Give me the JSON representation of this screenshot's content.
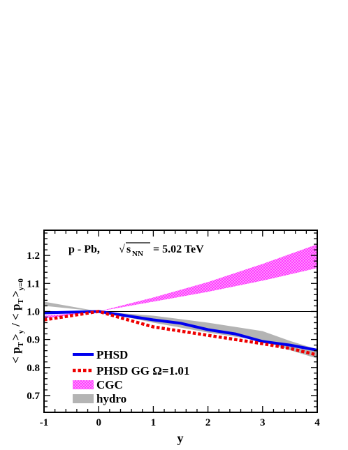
{
  "chart_data": {
    "type": "line",
    "xlabel": "y",
    "xlim": [
      -1,
      4
    ],
    "ylim": [
      0.64,
      1.29
    ],
    "xticks": [
      -1,
      0,
      1,
      2,
      3,
      4
    ],
    "xtick_labels": [
      "-1",
      "0",
      "1",
      "2",
      "3",
      "4"
    ],
    "yticks": [
      0.7,
      0.8,
      0.9,
      1.0,
      1.1,
      1.2
    ],
    "ytick_labels": [
      "0.7",
      "0.8",
      "0.9",
      "1.0",
      "1.1",
      "1.2"
    ],
    "reference_line": 1.0,
    "annotation": {
      "system": "p - Pb,",
      "sqrt_symbol": "√",
      "s_label": "s",
      "s_subscript": "NN",
      "energy": "= 5.02 TeV"
    },
    "ylabel_parts": {
      "open1": "< p",
      "sub1": "T",
      "close1": ">",
      "sub_y": "y",
      "slash": "/ < p",
      "sub2": "T",
      "close2": ">",
      "sub_y0": "y=0"
    },
    "legend": {
      "position": "bottom-left",
      "entries": [
        {
          "label": "PHSD",
          "style": "solid-line",
          "color": "#0000ee"
        },
        {
          "label": "PHSD GG Ω=1.01",
          "style": "dotted-line",
          "color": "#ee0000"
        },
        {
          "label": "CGC",
          "style": "band",
          "color": "#ff33ff"
        },
        {
          "label": "hydro",
          "style": "band",
          "color": "#b4b4b4"
        }
      ]
    },
    "series": [
      {
        "name": "PHSD",
        "style": "solid-line",
        "color": "#0000ee",
        "x": [
          -1,
          0,
          0.5,
          1,
          1.5,
          2,
          2.5,
          3,
          3.5,
          4
        ],
        "y": [
          0.995,
          1.0,
          0.985,
          0.97,
          0.958,
          0.935,
          0.92,
          0.893,
          0.88,
          0.862
        ]
      },
      {
        "name": "PHSD GG Ω=1.01",
        "style": "dotted-line",
        "color": "#ee0000",
        "x": [
          -1,
          0,
          0.5,
          1,
          1.5,
          2,
          2.5,
          3,
          3.5,
          4
        ],
        "y": [
          0.97,
          1.0,
          0.972,
          0.945,
          0.93,
          0.915,
          0.9,
          0.885,
          0.868,
          0.845
        ]
      },
      {
        "name": "CGC",
        "style": "band",
        "color": "#ff33ff",
        "x": [
          -1,
          0,
          1,
          2,
          3,
          4
        ],
        "y_low": [
          0.975,
          1.0,
          1.035,
          1.07,
          1.11,
          1.155
        ],
        "y_high": [
          0.985,
          1.0,
          1.05,
          1.105,
          1.17,
          1.24
        ]
      },
      {
        "name": "hydro",
        "style": "band",
        "color": "#b4b4b4",
        "x": [
          -1,
          0,
          1,
          2,
          3,
          3.5,
          4
        ],
        "y_low": [
          1.02,
          1.0,
          0.96,
          0.925,
          0.895,
          0.862,
          0.832
        ],
        "y_high": [
          1.035,
          1.0,
          0.985,
          0.96,
          0.93,
          0.895,
          0.865
        ]
      }
    ]
  }
}
